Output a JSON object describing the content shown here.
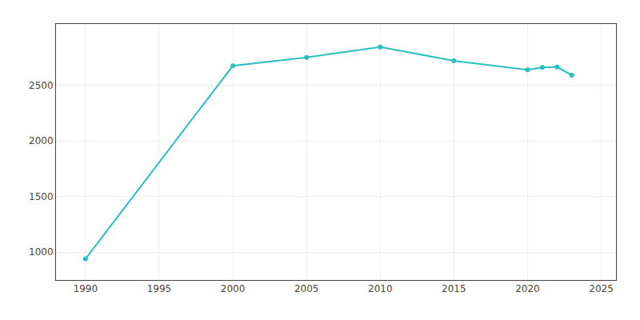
{
  "chart_data": {
    "type": "line",
    "x": [
      1990,
      2000,
      2005,
      2010,
      2015,
      2020,
      2021,
      2022,
      2023
    ],
    "values": [
      940,
      2674,
      2750,
      2843,
      2720,
      2638,
      2660,
      2663,
      2590
    ],
    "color": "#2abfbf",
    "marker": "circle",
    "xlim": [
      1988,
      2026
    ],
    "ylim": [
      750,
      3050
    ],
    "xticks": [
      1990,
      1995,
      2000,
      2005,
      2010,
      2015,
      2020,
      2025
    ],
    "yticks": [
      1000,
      1500,
      2000,
      2500
    ],
    "grid": true
  }
}
